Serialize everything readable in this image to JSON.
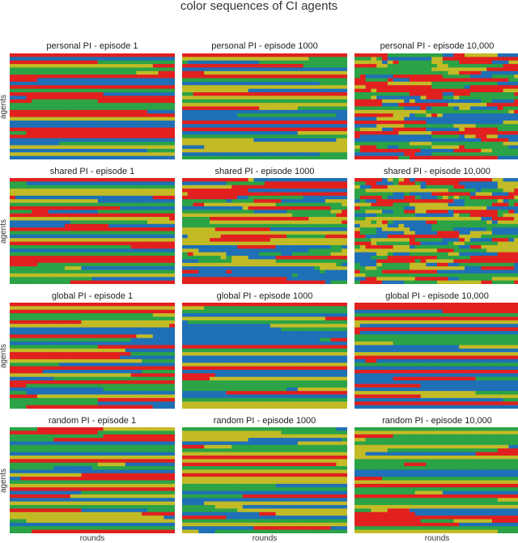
{
  "title": "color sequences of CI agents",
  "colors": {
    "red": "#e1201f",
    "green": "#2ba346",
    "blue": "#1f70b6",
    "yellow": "#c2bb26"
  },
  "axis_labels": {
    "y": "agents",
    "x": "rounds"
  },
  "chart_data": [
    {
      "type": "heatmap",
      "title": "personal PI - episode 1",
      "xlabel": "",
      "ylabel": "agents",
      "n_rows": 30,
      "n_cols": 30,
      "mixing": 0.03,
      "seed": 11
    },
    {
      "type": "heatmap",
      "title": "personal PI - episode 1000",
      "xlabel": "",
      "ylabel": "",
      "n_rows": 30,
      "n_cols": 30,
      "mixing": 0.02,
      "seed": 12
    },
    {
      "type": "heatmap",
      "title": "personal PI - episode 10,000",
      "xlabel": "",
      "ylabel": "",
      "n_rows": 30,
      "n_cols": 30,
      "mixing": 0.22,
      "seed": 13
    },
    {
      "type": "heatmap",
      "title": "shared PI - episode 1",
      "xlabel": "",
      "ylabel": "agents",
      "n_rows": 30,
      "n_cols": 30,
      "mixing": 0.03,
      "seed": 21
    },
    {
      "type": "heatmap",
      "title": "shared PI - episode 1000",
      "xlabel": "",
      "ylabel": "",
      "n_rows": 30,
      "n_cols": 30,
      "mixing": 0.1,
      "seed": 22
    },
    {
      "type": "heatmap",
      "title": "shared PI - episode 10,000",
      "xlabel": "",
      "ylabel": "",
      "n_rows": 30,
      "n_cols": 30,
      "mixing": 0.3,
      "seed": 23
    },
    {
      "type": "heatmap",
      "title": "global PI - episode 1",
      "xlabel": "",
      "ylabel": "agents",
      "n_rows": 30,
      "n_cols": 30,
      "mixing": 0.03,
      "seed": 31
    },
    {
      "type": "heatmap",
      "title": "global PI - episode 1000",
      "xlabel": "",
      "ylabel": "",
      "n_rows": 30,
      "n_cols": 30,
      "mixing": 0.02,
      "seed": 32
    },
    {
      "type": "heatmap",
      "title": "global PI - episode 10,000",
      "xlabel": "",
      "ylabel": "",
      "n_rows": 30,
      "n_cols": 30,
      "mixing": 0.03,
      "seed": 33
    },
    {
      "type": "heatmap",
      "title": "random PI - episode 1",
      "xlabel": "rounds",
      "ylabel": "agents",
      "n_rows": 30,
      "n_cols": 30,
      "mixing": 0.03,
      "seed": 41
    },
    {
      "type": "heatmap",
      "title": "random PI - episode 1000",
      "xlabel": "rounds",
      "ylabel": "",
      "n_rows": 30,
      "n_cols": 30,
      "mixing": 0.04,
      "seed": 42
    },
    {
      "type": "heatmap",
      "title": "random PI - episode 10,000",
      "xlabel": "rounds",
      "ylabel": "",
      "n_rows": 30,
      "n_cols": 30,
      "mixing": 0.04,
      "seed": 43
    }
  ]
}
